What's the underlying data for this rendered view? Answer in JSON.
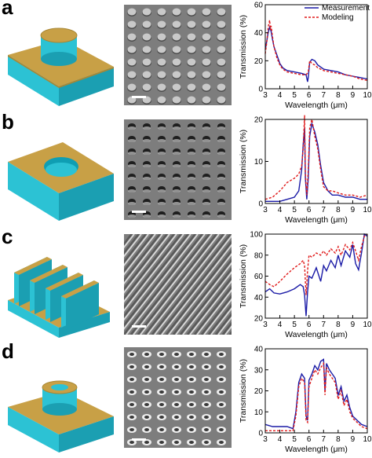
{
  "panels": [
    {
      "label": "a",
      "sem_pattern": "pillars"
    },
    {
      "label": "b",
      "sem_pattern": "holes"
    },
    {
      "label": "c",
      "sem_pattern": "gratings"
    },
    {
      "label": "d",
      "sem_pattern": "rings"
    }
  ],
  "colors": {
    "gold_top": "#c8a046",
    "gold_side": "#a88734",
    "cyan_side": "#2cc2d4",
    "cyan_dark": "#1b9fb2",
    "sem_bg": "#7d7d7d",
    "measurement": "#1a1aa6",
    "modeling": "#e01b1b"
  },
  "icons": {
    "a": "pillar-unit-cell-icon",
    "b": "hole-unit-cell-icon",
    "c": "grating-unit-cell-icon",
    "d": "ring-unit-cell-icon"
  },
  "chart_data": [
    {
      "type": "line",
      "xlabel": "Wavelength  (μm)",
      "ylabel": "Transmission (%)",
      "xlim": [
        3,
        10
      ],
      "ylim": [
        0,
        60
      ],
      "xticks": [
        "3",
        "4",
        "5",
        "6",
        "7",
        "8",
        "9",
        "10"
      ],
      "yticks": [
        "0",
        "20",
        "40",
        "60"
      ],
      "legend": {
        "position": "top-right",
        "entries": [
          "Measurement",
          "Modeling"
        ]
      },
      "series": [
        {
          "name": "Measurement",
          "style": "solid",
          "x": [
            3.0,
            3.1,
            3.2,
            3.3,
            3.4,
            3.5,
            3.6,
            3.8,
            4.0,
            4.2,
            4.5,
            5.0,
            5.5,
            5.8,
            5.9,
            5.95,
            6.05,
            6.2,
            6.4,
            6.6,
            7.0,
            7.5,
            8.0,
            8.5,
            9.0,
            9.5,
            10.0
          ],
          "y": [
            28,
            34,
            40,
            44,
            41,
            35,
            30,
            24,
            18,
            15,
            13,
            12,
            11,
            10,
            5,
            8,
            19,
            21,
            20,
            17,
            14,
            13,
            12,
            10,
            9,
            8,
            7
          ]
        },
        {
          "name": "Modeling",
          "style": "dashed",
          "x": [
            3.0,
            3.1,
            3.2,
            3.3,
            3.35,
            3.4,
            3.5,
            3.6,
            3.8,
            4.0,
            4.2,
            4.5,
            5.0,
            5.5,
            5.8,
            5.95,
            6.05,
            6.2,
            6.4,
            6.6,
            7.0,
            7.5,
            8.0,
            8.5,
            9.0,
            9.5,
            10.0
          ],
          "y": [
            25,
            33,
            44,
            49,
            42,
            45,
            37,
            30,
            22,
            17,
            14,
            12,
            11,
            10,
            10,
            12,
            20,
            18,
            17,
            15,
            13,
            12,
            11,
            10,
            9,
            7,
            6
          ]
        }
      ]
    },
    {
      "type": "line",
      "xlabel": "Wavelength  (μm)",
      "ylabel": "Transmission (%)",
      "xlim": [
        3,
        10
      ],
      "ylim": [
        0,
        20
      ],
      "xticks": [
        "3",
        "4",
        "5",
        "6",
        "7",
        "8",
        "9",
        "10"
      ],
      "yticks": [
        "0",
        "10",
        "20"
      ],
      "series": [
        {
          "name": "Measurement",
          "style": "solid",
          "x": [
            3.0,
            3.5,
            4.0,
            4.5,
            5.0,
            5.3,
            5.5,
            5.6,
            5.7,
            5.75,
            5.85,
            5.95,
            6.05,
            6.2,
            6.4,
            6.6,
            6.8,
            7.0,
            7.3,
            7.6,
            8.0,
            8.5,
            9.0,
            9.5,
            10.0
          ],
          "y": [
            0.5,
            0.5,
            0.5,
            1,
            1.5,
            3,
            8,
            14,
            18,
            6,
            1,
            6,
            16,
            19,
            17,
            14,
            9,
            5,
            3,
            2,
            2,
            1.5,
            1.5,
            1,
            1
          ]
        },
        {
          "name": "Modeling",
          "style": "dashed",
          "x": [
            3.0,
            3.5,
            4.0,
            4.5,
            5.0,
            5.3,
            5.5,
            5.6,
            5.7,
            5.75,
            5.85,
            5.95,
            6.05,
            6.2,
            6.4,
            6.6,
            6.8,
            7.0,
            7.3,
            7.6,
            8.0,
            8.5,
            9.0,
            9.5,
            10.0
          ],
          "y": [
            1,
            1.5,
            3,
            5,
            6,
            7,
            9,
            13,
            21,
            7,
            2,
            8,
            18,
            20,
            16,
            13,
            8,
            4,
            3,
            3,
            2.5,
            2,
            2,
            1.5,
            2
          ]
        }
      ]
    },
    {
      "type": "line",
      "xlabel": "Wavelength  (μm)",
      "ylabel": "Transmission (%)",
      "xlim": [
        3,
        10
      ],
      "ylim": [
        20,
        100
      ],
      "xticks": [
        "3",
        "4",
        "5",
        "6",
        "7",
        "8",
        "9",
        "10"
      ],
      "yticks": [
        "20",
        "40",
        "60",
        "80",
        "100"
      ],
      "series": [
        {
          "name": "Measurement",
          "style": "solid",
          "x": [
            3.0,
            3.3,
            3.6,
            4.0,
            4.5,
            5.0,
            5.4,
            5.6,
            5.7,
            5.8,
            5.9,
            6.0,
            6.2,
            6.5,
            6.8,
            7.0,
            7.2,
            7.5,
            7.8,
            8.0,
            8.2,
            8.5,
            8.8,
            9.0,
            9.2,
            9.4,
            9.6,
            9.8,
            10.0
          ],
          "y": [
            45,
            48,
            44,
            43,
            45,
            48,
            52,
            50,
            42,
            22,
            45,
            60,
            58,
            68,
            55,
            70,
            65,
            75,
            68,
            80,
            70,
            84,
            78,
            90,
            72,
            66,
            82,
            100,
            98
          ]
        },
        {
          "name": "Modeling",
          "style": "dashed",
          "x": [
            3.0,
            3.3,
            3.6,
            4.0,
            4.5,
            5.0,
            5.4,
            5.6,
            5.7,
            5.8,
            5.9,
            6.0,
            6.2,
            6.5,
            6.8,
            7.0,
            7.2,
            7.5,
            7.8,
            8.0,
            8.2,
            8.5,
            8.8,
            9.0,
            9.2,
            9.4,
            9.6,
            9.8,
            10.0
          ],
          "y": [
            55,
            52,
            50,
            55,
            62,
            68,
            72,
            75,
            70,
            42,
            65,
            80,
            78,
            82,
            80,
            84,
            80,
            86,
            82,
            88,
            80,
            90,
            85,
            92,
            84,
            75,
            88,
            98,
            100
          ]
        }
      ]
    },
    {
      "type": "line",
      "xlabel": "Wavelength  (μm)",
      "ylabel": "Transmission (%)",
      "xlim": [
        3,
        10
      ],
      "ylim": [
        0,
        40
      ],
      "xticks": [
        "3",
        "4",
        "5",
        "6",
        "7",
        "8",
        "9",
        "10"
      ],
      "yticks": [
        "0",
        "10",
        "20",
        "30",
        "40"
      ],
      "series": [
        {
          "name": "Measurement",
          "style": "solid",
          "x": [
            3.0,
            3.5,
            4.0,
            4.5,
            4.9,
            5.1,
            5.3,
            5.5,
            5.7,
            5.8,
            5.9,
            6.0,
            6.2,
            6.4,
            6.6,
            6.8,
            7.0,
            7.1,
            7.2,
            7.4,
            7.6,
            7.8,
            8.0,
            8.2,
            8.4,
            8.6,
            8.8,
            9.0,
            9.3,
            9.6,
            10.0
          ],
          "y": [
            4,
            3,
            3,
            3,
            2,
            10,
            24,
            28,
            26,
            8,
            6,
            25,
            28,
            32,
            30,
            34,
            35,
            20,
            33,
            30,
            28,
            26,
            18,
            22,
            15,
            18,
            12,
            8,
            6,
            4,
            3
          ]
        },
        {
          "name": "Modeling",
          "style": "dashed",
          "x": [
            3.0,
            3.5,
            4.0,
            4.5,
            4.9,
            5.1,
            5.3,
            5.5,
            5.7,
            5.8,
            5.9,
            6.0,
            6.2,
            6.4,
            6.6,
            6.8,
            7.0,
            7.1,
            7.2,
            7.4,
            7.6,
            7.8,
            8.0,
            8.2,
            8.4,
            8.6,
            8.8,
            9.0,
            9.3,
            9.6,
            10.0
          ],
          "y": [
            1,
            1,
            1,
            1,
            1,
            8,
            22,
            26,
            24,
            6,
            5,
            22,
            26,
            30,
            28,
            31,
            33,
            18,
            31,
            28,
            26,
            24,
            16,
            20,
            13,
            16,
            10,
            7,
            5,
            3,
            2
          ]
        }
      ]
    }
  ]
}
